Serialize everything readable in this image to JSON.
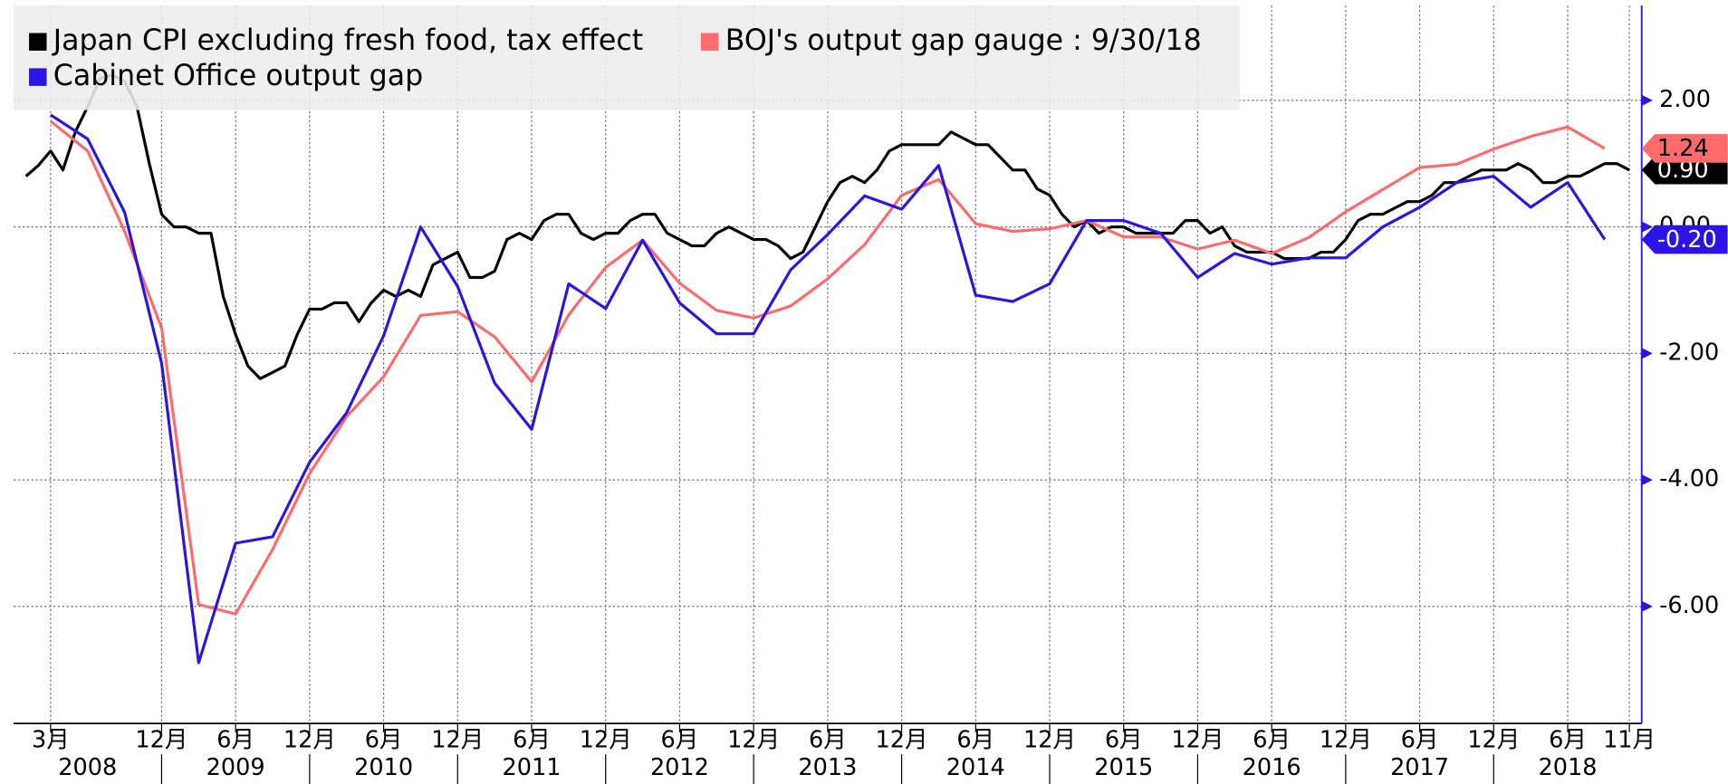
{
  "chart_data": {
    "type": "line",
    "legend": "upper left",
    "grid": true,
    "y_axis_side": "right",
    "ylim": [
      -7.85,
      3.5
    ],
    "yticks": [
      {
        "value": 2,
        "label": "2.00"
      },
      {
        "value": 0,
        "label": "0.00"
      },
      {
        "value": -2,
        "label": "-2.00"
      },
      {
        "value": -4,
        "label": "-4.00"
      },
      {
        "value": -6,
        "label": "-6.00"
      }
    ],
    "xlim": [
      "2007-12",
      "2018-12"
    ],
    "xticks": [
      {
        "value": "2008-03",
        "label": "3月"
      },
      {
        "value": "2008-12",
        "label": "12月"
      },
      {
        "value": "2009-06",
        "label": "6月"
      },
      {
        "value": "2009-12",
        "label": "12月"
      },
      {
        "value": "2010-06",
        "label": "6月"
      },
      {
        "value": "2010-12",
        "label": "12月"
      },
      {
        "value": "2011-06",
        "label": "6月"
      },
      {
        "value": "2011-12",
        "label": "12月"
      },
      {
        "value": "2012-06",
        "label": "6月"
      },
      {
        "value": "2012-12",
        "label": "12月"
      },
      {
        "value": "2013-06",
        "label": "6月"
      },
      {
        "value": "2013-12",
        "label": "12月"
      },
      {
        "value": "2014-06",
        "label": "6月"
      },
      {
        "value": "2014-12",
        "label": "12月"
      },
      {
        "value": "2015-06",
        "label": "6月"
      },
      {
        "value": "2015-12",
        "label": "12月"
      },
      {
        "value": "2016-06",
        "label": "6月"
      },
      {
        "value": "2016-12",
        "label": "12月"
      },
      {
        "value": "2017-06",
        "label": "6月"
      },
      {
        "value": "2017-12",
        "label": "12月"
      },
      {
        "value": "2018-06",
        "label": "6月"
      },
      {
        "value": "2018-11",
        "label": "11月"
      }
    ],
    "x_years": [
      2008,
      2009,
      2010,
      2011,
      2012,
      2013,
      2014,
      2015,
      2016,
      2017,
      2018
    ],
    "series": [
      {
        "name": "Japan CPI excluding fresh food, tax effect",
        "color": "#000000",
        "last_label": "0.90",
        "label_text_color": "#ffffff",
        "x": [
          "2008-01",
          "2008-02",
          "2008-03",
          "2008-04",
          "2008-05",
          "2008-06",
          "2008-07",
          "2008-08",
          "2008-09",
          "2008-10",
          "2008-11",
          "2008-12",
          "2009-01",
          "2009-02",
          "2009-03",
          "2009-04",
          "2009-05",
          "2009-06",
          "2009-07",
          "2009-08",
          "2009-09",
          "2009-10",
          "2009-11",
          "2009-12",
          "2010-01",
          "2010-02",
          "2010-03",
          "2010-04",
          "2010-05",
          "2010-06",
          "2010-07",
          "2010-08",
          "2010-09",
          "2010-10",
          "2010-11",
          "2010-12",
          "2011-01",
          "2011-02",
          "2011-03",
          "2011-04",
          "2011-05",
          "2011-06",
          "2011-07",
          "2011-08",
          "2011-09",
          "2011-10",
          "2011-11",
          "2011-12",
          "2012-01",
          "2012-02",
          "2012-03",
          "2012-04",
          "2012-05",
          "2012-06",
          "2012-07",
          "2012-08",
          "2012-09",
          "2012-10",
          "2012-11",
          "2012-12",
          "2013-01",
          "2013-02",
          "2013-03",
          "2013-04",
          "2013-05",
          "2013-06",
          "2013-07",
          "2013-08",
          "2013-09",
          "2013-10",
          "2013-11",
          "2013-12",
          "2014-01",
          "2014-02",
          "2014-03",
          "2014-04",
          "2014-05",
          "2014-06",
          "2014-07",
          "2014-08",
          "2014-09",
          "2014-10",
          "2014-11",
          "2014-12",
          "2015-01",
          "2015-02",
          "2015-03",
          "2015-04",
          "2015-05",
          "2015-06",
          "2015-07",
          "2015-08",
          "2015-09",
          "2015-10",
          "2015-11",
          "2015-12",
          "2016-01",
          "2016-02",
          "2016-03",
          "2016-04",
          "2016-05",
          "2016-06",
          "2016-07",
          "2016-08",
          "2016-09",
          "2016-10",
          "2016-11",
          "2016-12",
          "2017-01",
          "2017-02",
          "2017-03",
          "2017-04",
          "2017-05",
          "2017-06",
          "2017-07",
          "2017-08",
          "2017-09",
          "2017-10",
          "2017-11",
          "2017-12",
          "2018-01",
          "2018-02",
          "2018-03",
          "2018-04",
          "2018-05",
          "2018-06",
          "2018-07",
          "2018-08",
          "2018-09",
          "2018-10",
          "2018-11"
        ],
        "values": [
          0.8,
          0.97,
          1.2,
          0.9,
          1.5,
          1.9,
          2.35,
          2.4,
          2.3,
          1.9,
          1.0,
          0.2,
          0.0,
          0.0,
          -0.1,
          -0.1,
          -1.1,
          -1.7,
          -2.2,
          -2.4,
          -2.3,
          -2.2,
          -1.7,
          -1.3,
          -1.3,
          -1.2,
          -1.2,
          -1.5,
          -1.2,
          -1.0,
          -1.1,
          -1.0,
          -1.1,
          -0.6,
          -0.5,
          -0.4,
          -0.8,
          -0.8,
          -0.7,
          -0.2,
          -0.1,
          -0.2,
          0.1,
          0.2,
          0.2,
          -0.1,
          -0.2,
          -0.1,
          -0.1,
          0.1,
          0.2,
          0.2,
          -0.1,
          -0.2,
          -0.3,
          -0.3,
          -0.1,
          0.0,
          -0.1,
          -0.2,
          -0.2,
          -0.3,
          -0.5,
          -0.4,
          0.0,
          0.4,
          0.7,
          0.8,
          0.7,
          0.9,
          1.2,
          1.3,
          1.3,
          1.3,
          1.3,
          1.5,
          1.4,
          1.3,
          1.3,
          1.1,
          0.9,
          0.9,
          0.6,
          0.5,
          0.2,
          0.0,
          0.1,
          -0.1,
          0.0,
          0.0,
          -0.1,
          -0.1,
          -0.1,
          -0.1,
          0.1,
          0.1,
          -0.1,
          0.0,
          -0.3,
          -0.4,
          -0.4,
          -0.4,
          -0.5,
          -0.5,
          -0.5,
          -0.4,
          -0.4,
          -0.2,
          0.1,
          0.2,
          0.2,
          0.3,
          0.4,
          0.4,
          0.5,
          0.7,
          0.7,
          0.8,
          0.9,
          0.9,
          0.9,
          1.0,
          0.9,
          0.7,
          0.7,
          0.8,
          0.8,
          0.9,
          1.0,
          1.0,
          0.9
        ]
      },
      {
        "name": "BOJ's output gap gauge : 9/30/18",
        "color": "#ff6b6b",
        "last_label": "1.24",
        "label_text_color": "#000000",
        "x": [
          "2008-03",
          "2008-06",
          "2008-09",
          "2008-12",
          "2009-03",
          "2009-06",
          "2009-09",
          "2009-12",
          "2010-03",
          "2010-06",
          "2010-09",
          "2010-12",
          "2011-03",
          "2011-06",
          "2011-09",
          "2011-12",
          "2012-03",
          "2012-06",
          "2012-09",
          "2012-12",
          "2013-03",
          "2013-06",
          "2013-09",
          "2013-12",
          "2014-03",
          "2014-06",
          "2014-09",
          "2014-12",
          "2015-03",
          "2015-06",
          "2015-09",
          "2015-12",
          "2016-03",
          "2016-06",
          "2016-09",
          "2016-12",
          "2017-03",
          "2017-06",
          "2017-09",
          "2017-12",
          "2018-03",
          "2018-06",
          "2018-09"
        ],
        "values": [
          1.67,
          1.2,
          -0.07,
          -1.6,
          -5.97,
          -6.12,
          -5.1,
          -3.9,
          -3.0,
          -2.37,
          -1.4,
          -1.34,
          -1.74,
          -2.45,
          -1.39,
          -0.64,
          -0.21,
          -0.89,
          -1.32,
          -1.44,
          -1.25,
          -0.82,
          -0.28,
          0.5,
          0.75,
          0.05,
          -0.07,
          -0.03,
          0.1,
          -0.16,
          -0.16,
          -0.35,
          -0.21,
          -0.42,
          -0.17,
          0.24,
          0.59,
          0.94,
          0.99,
          1.23,
          1.43,
          1.58,
          1.24
        ]
      },
      {
        "name": "Cabinet Office output gap",
        "color": "#2a14e6",
        "last_label": "-0.20",
        "label_text_color": "#ffffff",
        "x": [
          "2008-03",
          "2008-06",
          "2008-09",
          "2008-12",
          "2009-03",
          "2009-06",
          "2009-09",
          "2009-12",
          "2010-03",
          "2010-06",
          "2010-09",
          "2010-12",
          "2011-03",
          "2011-06",
          "2011-09",
          "2011-12",
          "2012-03",
          "2012-06",
          "2012-09",
          "2012-12",
          "2013-03",
          "2013-06",
          "2013-09",
          "2013-12",
          "2014-03",
          "2014-06",
          "2014-09",
          "2014-12",
          "2015-03",
          "2015-06",
          "2015-09",
          "2015-12",
          "2016-03",
          "2016-06",
          "2016-09",
          "2016-12",
          "2017-03",
          "2017-06",
          "2017-09",
          "2017-12",
          "2018-03",
          "2018-06",
          "2018-09"
        ],
        "values": [
          1.77,
          1.39,
          0.23,
          -2.16,
          -6.89,
          -5.0,
          -4.9,
          -3.72,
          -2.94,
          -1.72,
          0,
          -0.94,
          -2.47,
          -3.2,
          -0.9,
          -1.29,
          -0.21,
          -1.2,
          -1.69,
          -1.69,
          -0.68,
          -0.12,
          0.49,
          0.28,
          0.97,
          -1.08,
          -1.18,
          -0.9,
          0.1,
          0.1,
          -0.1,
          -0.8,
          -0.42,
          -0.59,
          -0.49,
          -0.49,
          0,
          0.31,
          0.7,
          0.8,
          0.31,
          0.7,
          -0.2
        ]
      }
    ]
  }
}
